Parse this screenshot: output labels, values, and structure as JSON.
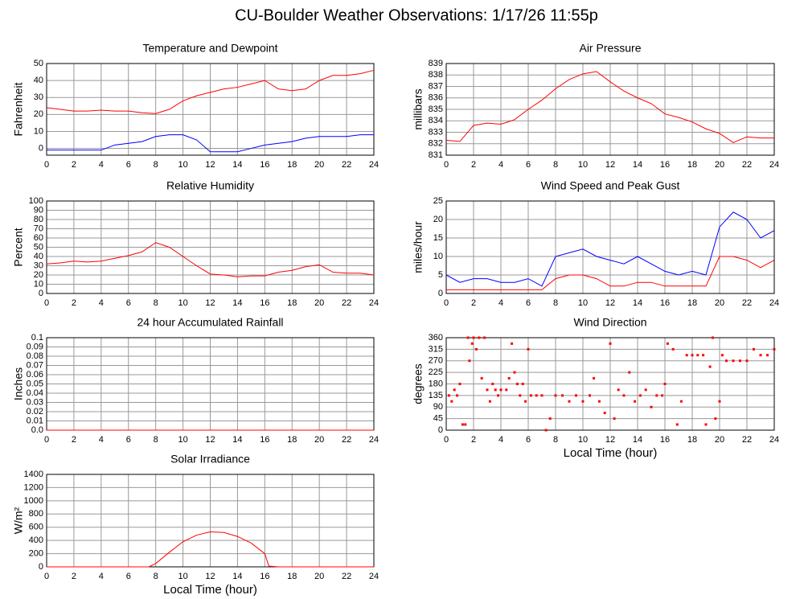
{
  "title": "CU-Boulder Weather Observations: 1/17/26 11:55p",
  "chart_data": [
    {
      "type": "line",
      "title": "Temperature and Dewpoint",
      "ylabel": "Fahrenheit",
      "x": [
        0,
        1,
        2,
        3,
        4,
        5,
        6,
        7,
        8,
        9,
        10,
        11,
        12,
        13,
        14,
        15,
        16,
        17,
        18,
        19,
        20,
        21,
        22,
        23,
        24
      ],
      "series": [
        {
          "color": "#ff0000",
          "values": [
            24,
            23,
            22,
            22,
            22.5,
            22,
            22,
            21,
            20.5,
            23,
            28,
            31,
            33,
            35,
            36,
            38,
            40,
            35,
            34,
            35,
            40,
            43,
            43,
            44,
            46
          ]
        },
        {
          "color": "#0000ff",
          "values": [
            -1,
            -1,
            -1,
            -1,
            -1,
            2,
            3,
            4,
            7,
            8,
            8,
            5,
            -2,
            -2,
            -2,
            0,
            2,
            3,
            4,
            6,
            7,
            7,
            7,
            8,
            8
          ]
        }
      ],
      "xlim": [
        0,
        24
      ],
      "xticks": [
        0,
        2,
        4,
        6,
        8,
        10,
        12,
        14,
        16,
        18,
        20,
        22,
        24
      ],
      "ylim": [
        -4,
        50
      ],
      "yticks": [
        0,
        10,
        20,
        30,
        40,
        50
      ],
      "grid": true
    },
    {
      "type": "line",
      "title": "Air Pressure",
      "ylabel": "millibars",
      "x": [
        0,
        1,
        2,
        3,
        4,
        5,
        6,
        7,
        8,
        9,
        10,
        11,
        12,
        13,
        14,
        15,
        16,
        17,
        18,
        19,
        20,
        21,
        22,
        23,
        24
      ],
      "series": [
        {
          "color": "#ff0000",
          "values": [
            832.3,
            832.2,
            833.6,
            833.8,
            833.7,
            834.1,
            835,
            835.8,
            836.8,
            837.6,
            838.1,
            838.3,
            837.4,
            836.6,
            836,
            835.5,
            834.6,
            834.3,
            833.9,
            833.3,
            832.9,
            832.1,
            832.6,
            832.5,
            832.5
          ]
        }
      ],
      "xlim": [
        0,
        24
      ],
      "xticks": [
        0,
        2,
        4,
        6,
        8,
        10,
        12,
        14,
        16,
        18,
        20,
        22,
        24
      ],
      "ylim": [
        831,
        839
      ],
      "yticks": [
        831,
        832,
        833,
        834,
        835,
        836,
        837,
        838,
        839
      ],
      "grid": true
    },
    {
      "type": "line",
      "title": "Relative Humidity",
      "ylabel": "Percent",
      "x": [
        0,
        1,
        2,
        3,
        4,
        5,
        6,
        7,
        8,
        9,
        10,
        11,
        12,
        13,
        14,
        15,
        16,
        17,
        18,
        19,
        20,
        21,
        22,
        23,
        24
      ],
      "series": [
        {
          "color": "#ff0000",
          "values": [
            32,
            33,
            35,
            34,
            35,
            38,
            41,
            45,
            55,
            50,
            40,
            30,
            21,
            20,
            18,
            19,
            19,
            23,
            25,
            29,
            31,
            23,
            22,
            22,
            20
          ]
        }
      ],
      "xlim": [
        0,
        24
      ],
      "xticks": [
        0,
        2,
        4,
        6,
        8,
        10,
        12,
        14,
        16,
        18,
        20,
        22,
        24
      ],
      "ylim": [
        0,
        100
      ],
      "yticks": [
        0,
        10,
        20,
        30,
        40,
        50,
        60,
        70,
        80,
        90,
        100
      ],
      "grid": true
    },
    {
      "type": "line",
      "title": "Wind Speed and Peak Gust",
      "ylabel": "miles/hour",
      "x": [
        0,
        1,
        2,
        3,
        4,
        5,
        6,
        7,
        8,
        9,
        10,
        11,
        12,
        13,
        14,
        15,
        16,
        17,
        18,
        19,
        20,
        21,
        22,
        23,
        24
      ],
      "series": [
        {
          "color": "#0000ff",
          "values": [
            5,
            3,
            4,
            4,
            3,
            3,
            4,
            2,
            10,
            11,
            12,
            10,
            9,
            8,
            10,
            8,
            6,
            5,
            6,
            5,
            18,
            22,
            20,
            15,
            17
          ]
        },
        {
          "color": "#ff0000",
          "values": [
            1,
            1,
            1,
            1,
            1,
            1,
            1,
            1,
            4,
            5,
            5,
            4,
            2,
            2,
            3,
            3,
            2,
            2,
            2,
            2,
            10,
            10,
            9,
            7,
            9
          ]
        }
      ],
      "xlim": [
        0,
        24
      ],
      "xticks": [
        0,
        2,
        4,
        6,
        8,
        10,
        12,
        14,
        16,
        18,
        20,
        22,
        24
      ],
      "ylim": [
        0,
        25
      ],
      "yticks": [
        0,
        5,
        10,
        15,
        20,
        25
      ],
      "grid": true
    },
    {
      "type": "line",
      "title": "24 hour Accumulated Rainfall",
      "ylabel": "Inches",
      "x": [
        0,
        24
      ],
      "series": [
        {
          "color": "#ff0000",
          "values": [
            0,
            0
          ]
        }
      ],
      "xlim": [
        0,
        24
      ],
      "xticks": [
        0,
        2,
        4,
        6,
        8,
        10,
        12,
        14,
        16,
        18,
        20,
        22,
        24
      ],
      "ylim": [
        0,
        0.1
      ],
      "yticks": [
        {
          "value": 0,
          "label": "0.0"
        },
        0.01,
        0.02,
        0.03,
        0.04,
        0.05,
        0.06,
        0.07,
        0.08,
        0.09,
        0.1
      ],
      "grid": true
    },
    {
      "type": "scatter",
      "title": "Wind Direction",
      "ylabel": "degrees",
      "xlabel": "Local Time (hour)",
      "x": [
        0.2,
        0.4,
        0.6,
        0.8,
        1.0,
        1.2,
        1.4,
        1.6,
        1.7,
        1.9,
        2.0,
        2.2,
        2.4,
        2.6,
        2.8,
        3.0,
        3.2,
        3.4,
        3.6,
        3.8,
        4.0,
        4.4,
        4.6,
        4.8,
        5.0,
        5.2,
        5.4,
        5.6,
        5.8,
        6.0,
        6.2,
        6.6,
        7.0,
        7.3,
        7.6,
        8.0,
        8.5,
        9.0,
        9.5,
        10.0,
        10.5,
        10.8,
        11.2,
        11.6,
        12.0,
        12.3,
        12.6,
        13.0,
        13.4,
        13.8,
        14.2,
        14.6,
        15.0,
        15.4,
        15.8,
        16.0,
        16.2,
        16.6,
        16.9,
        17.2,
        17.6,
        18.0,
        18.4,
        18.8,
        19.0,
        19.3,
        19.5,
        19.7,
        20.0,
        20.2,
        20.5,
        21.0,
        21.5,
        22.0,
        22.5,
        23.0,
        23.5,
        24.0
      ],
      "series": [
        {
          "color": "#ff0000",
          "values": [
            135,
            112,
            157,
            135,
            180,
            22,
            22,
            360,
            270,
            337,
            360,
            315,
            360,
            202,
            360,
            157,
            112,
            180,
            157,
            135,
            157,
            157,
            202,
            337,
            225,
            180,
            135,
            180,
            112,
            315,
            135,
            135,
            135,
            0,
            45,
            135,
            135,
            112,
            135,
            112,
            135,
            202,
            112,
            67,
            337,
            45,
            157,
            135,
            225,
            112,
            135,
            157,
            90,
            135,
            135,
            180,
            337,
            315,
            22,
            112,
            292,
            292,
            292,
            292,
            22,
            247,
            360,
            45,
            112,
            292,
            270,
            270,
            270,
            270,
            315,
            292,
            292,
            315
          ]
        }
      ],
      "xlim": [
        0,
        24
      ],
      "xticks": [
        0,
        2,
        4,
        6,
        8,
        10,
        12,
        14,
        16,
        18,
        20,
        22,
        24
      ],
      "ylim": [
        0,
        360
      ],
      "yticks": [
        0,
        45,
        90,
        135,
        180,
        225,
        270,
        315,
        360
      ],
      "grid": true
    },
    {
      "type": "line",
      "title": "Solar Irradiance",
      "ylabel": "W/m²",
      "xlabel": "Local Time (hour)",
      "x": [
        0,
        7,
        7.5,
        8,
        9,
        10,
        11,
        12,
        13,
        14,
        15,
        16,
        16.3,
        17,
        24
      ],
      "series": [
        {
          "color": "#ff0000",
          "values": [
            0,
            0,
            0,
            50,
            220,
            380,
            480,
            530,
            520,
            460,
            360,
            200,
            10,
            0,
            0
          ]
        }
      ],
      "xlim": [
        0,
        24
      ],
      "xticks": [
        0,
        2,
        4,
        6,
        8,
        10,
        12,
        14,
        16,
        18,
        20,
        22,
        24
      ],
      "ylim": [
        0,
        1400
      ],
      "yticks": [
        0,
        200,
        400,
        600,
        800,
        1000,
        1200,
        1400
      ],
      "grid": true
    }
  ]
}
